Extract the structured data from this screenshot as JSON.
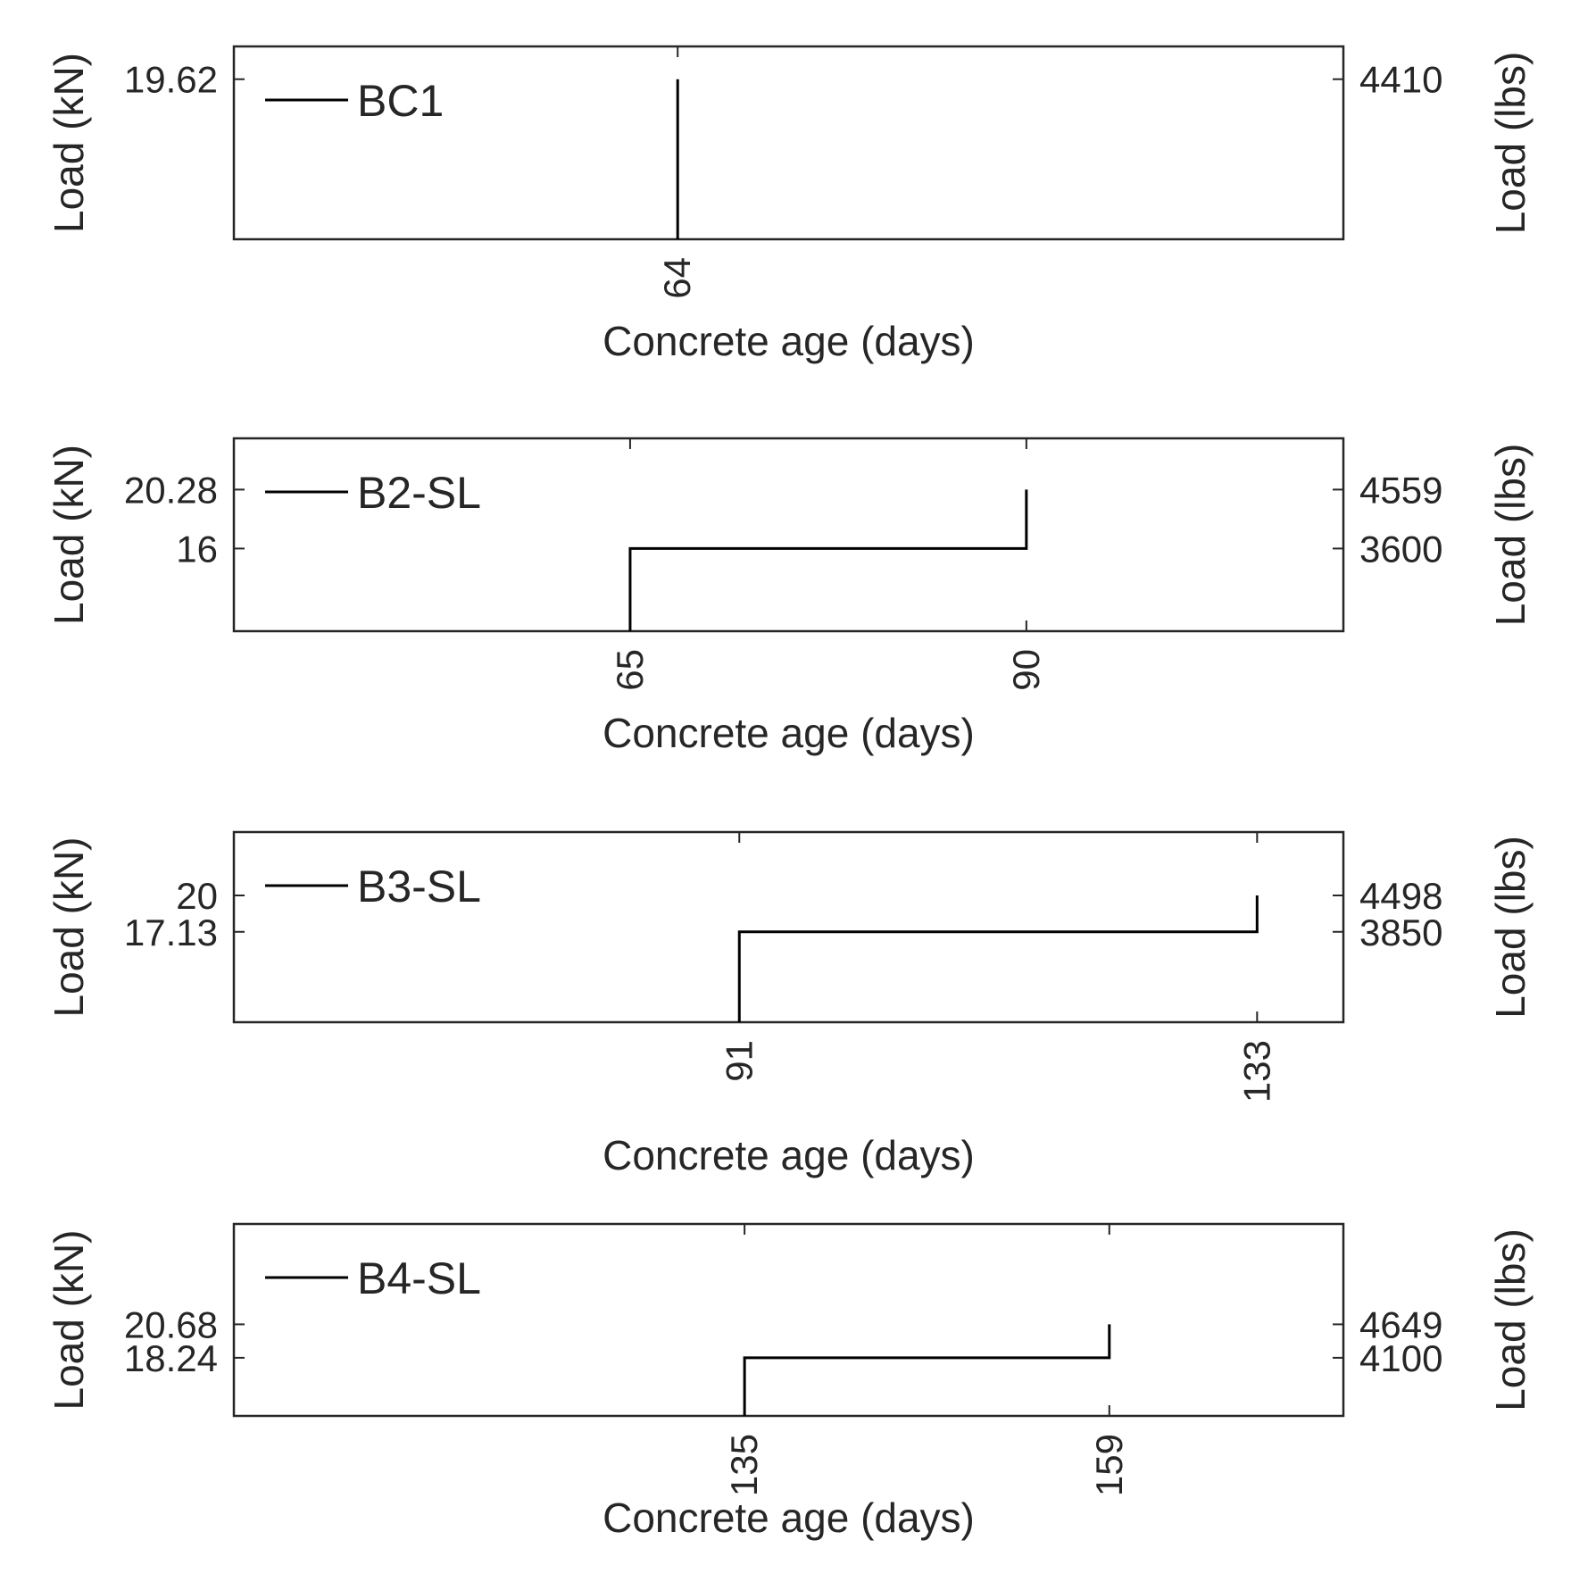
{
  "chart_data": [
    {
      "type": "line",
      "xlabel": "Concrete age (days)",
      "ylabel_left": "Load (kN)",
      "ylabel_right": "Load (lbs)",
      "legend": "BC1",
      "legend_position": "top-left",
      "xlim": [
        30,
        115
      ],
      "ylim": [
        8,
        22
      ],
      "x_ticks": [
        64
      ],
      "y_ticks_left": [
        {
          "value": 19.62,
          "label": "19.62"
        }
      ],
      "y_ticks_right": [
        {
          "value": 19.62,
          "label": "4410"
        }
      ],
      "points": [
        {
          "x": 64,
          "y": 8
        },
        {
          "x": 64,
          "y": 19.62
        }
      ]
    },
    {
      "type": "line",
      "xlabel": "Concrete age (days)",
      "ylabel_left": "Load (kN)",
      "ylabel_right": "Load (lbs)",
      "legend": "B2-SL",
      "legend_position": "top-left",
      "xlim": [
        40,
        110
      ],
      "ylim": [
        10,
        24
      ],
      "x_ticks": [
        65,
        90
      ],
      "y_ticks_left": [
        {
          "value": 20.28,
          "label": "20.28"
        },
        {
          "value": 16,
          "label": "16"
        }
      ],
      "y_ticks_right": [
        {
          "value": 20.28,
          "label": "4559"
        },
        {
          "value": 16,
          "label": "3600"
        }
      ],
      "points": [
        {
          "x": 65,
          "y": 10
        },
        {
          "x": 65,
          "y": 16
        },
        {
          "x": 90,
          "y": 16
        },
        {
          "x": 90,
          "y": 20.28
        }
      ]
    },
    {
      "type": "line",
      "xlabel": "Concrete age (days)",
      "ylabel_left": "Load (kN)",
      "ylabel_right": "Load (lbs)",
      "legend": "B3-SL",
      "legend_position": "top-left",
      "xlim": [
        50,
        140
      ],
      "ylim": [
        10,
        25
      ],
      "x_ticks": [
        91,
        133
      ],
      "y_ticks_left": [
        {
          "value": 20,
          "label": "20"
        },
        {
          "value": 17.13,
          "label": "17.13"
        }
      ],
      "y_ticks_right": [
        {
          "value": 20,
          "label": "4498"
        },
        {
          "value": 17.13,
          "label": "3850"
        }
      ],
      "points": [
        {
          "x": 91,
          "y": 10
        },
        {
          "x": 91,
          "y": 17.13
        },
        {
          "x": 133,
          "y": 17.13
        },
        {
          "x": 133,
          "y": 20
        }
      ]
    },
    {
      "type": "line",
      "xlabel": "Concrete age (days)",
      "ylabel_left": "Load (kN)",
      "ylabel_right": "Load (lbs)",
      "legend": "B4-SL",
      "legend_position": "top-left",
      "xlim": [
        101.4,
        174.4
      ],
      "ylim": [
        14,
        28
      ],
      "x_ticks": [
        135,
        159
      ],
      "y_ticks_left": [
        {
          "value": 20.68,
          "label": "20.68"
        },
        {
          "value": 18.24,
          "label": "18.24"
        }
      ],
      "y_ticks_right": [
        {
          "value": 20.68,
          "label": "4649"
        },
        {
          "value": 18.24,
          "label": "4100"
        }
      ],
      "points": [
        {
          "x": 135,
          "y": 14
        },
        {
          "x": 135,
          "y": 18.24
        },
        {
          "x": 159,
          "y": 18.24
        },
        {
          "x": 159,
          "y": 20.68
        }
      ]
    }
  ]
}
